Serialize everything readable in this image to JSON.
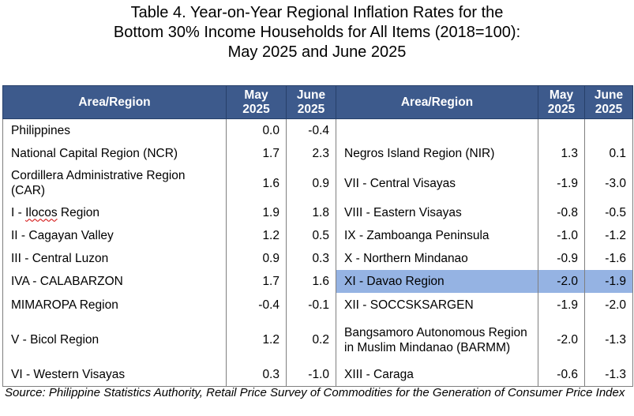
{
  "title": {
    "line1": "Table 4. Year-on-Year Regional Inflation Rates for the",
    "line2": "Bottom 30% Income Households for All Items (2018=100):",
    "line3": "May 2025 and June 2025"
  },
  "headers": {
    "area": "Area/Region",
    "may_line1": "May",
    "may_line2": "2025",
    "june_line1": "June",
    "june_line2": "2025"
  },
  "left": [
    {
      "area": "Philippines",
      "may": "0.0",
      "june": "-0.4"
    },
    {
      "area": "National Capital Region (NCR)",
      "may": "1.7",
      "june": "2.3"
    },
    {
      "area": "Cordillera Administrative Region (CAR)",
      "may": "1.6",
      "june": "0.9"
    },
    {
      "area_prefix": "I - ",
      "area_word": "Ilocos",
      "area_suffix": " Region",
      "may": "1.9",
      "june": "1.8"
    },
    {
      "area": "II - Cagayan Valley",
      "may": "1.2",
      "june": "0.5"
    },
    {
      "area": "III - Central Luzon",
      "may": "0.9",
      "june": "0.3"
    },
    {
      "area": "IVA - CALABARZON",
      "may": "1.7",
      "june": "1.6"
    },
    {
      "area": "MIMAROPA Region",
      "may": "-0.4",
      "june": "-0.1"
    },
    {
      "area": "V - Bicol Region",
      "may": "1.2",
      "june": "0.2"
    },
    {
      "area": "VI - Western Visayas",
      "may": "0.3",
      "june": "-1.0"
    }
  ],
  "right": [
    {
      "area": "",
      "may": "",
      "june": ""
    },
    {
      "area": "Negros Island Region (NIR)",
      "may": "1.3",
      "june": "0.1"
    },
    {
      "area": "VII - Central Visayas",
      "may": "-1.9",
      "june": "-3.0"
    },
    {
      "area": "VIII - Eastern Visayas",
      "may": "-0.8",
      "june": "-0.5"
    },
    {
      "area": "IX - Zamboanga Peninsula",
      "may": "-1.0",
      "june": "-1.2"
    },
    {
      "area": "X - Northern Mindanao",
      "may": "-0.9",
      "june": "-1.6"
    },
    {
      "area": "XI - Davao Region",
      "may": "-2.0",
      "june": "-1.9"
    },
    {
      "area": "XII - SOCCSKSARGEN",
      "may": "-1.9",
      "june": "-2.0"
    },
    {
      "area": "Bangsamoro Autonomous Region in Muslim Mindanao (BARMM)",
      "may": "-2.0",
      "june": "-1.3"
    },
    {
      "area": "XIII - Caraga",
      "may": "-0.6",
      "june": "-1.3"
    }
  ],
  "highlight_color": "#95b3e3",
  "header_color": "#3d5a8c",
  "source": {
    "label": "Source:",
    "text": "Philippine Statistics Authority, Retail Price Survey of Commodities for the Generation of Consumer Price Index"
  }
}
